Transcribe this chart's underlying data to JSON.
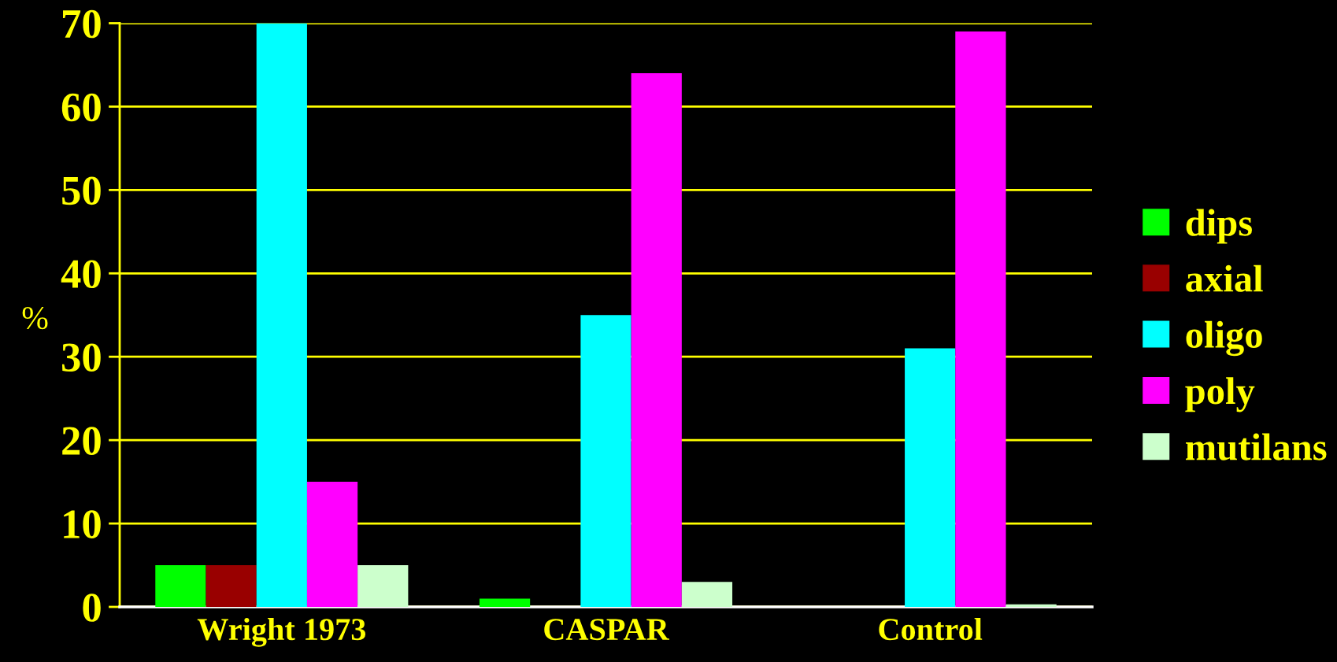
{
  "chart_data": {
    "type": "bar",
    "categories": [
      "Wright 1973",
      "CASPAR",
      "Control"
    ],
    "ylabel": "%",
    "ylim": [
      0,
      70
    ],
    "yticks": [
      0,
      10,
      20,
      30,
      40,
      50,
      60,
      70
    ],
    "grid": "y",
    "legend": "right",
    "series": [
      {
        "name": "dips",
        "color": "#00ff00",
        "values": [
          5,
          1,
          0
        ]
      },
      {
        "name": "axial",
        "color": "#990000",
        "values": [
          5,
          0,
          0
        ]
      },
      {
        "name": "oligo",
        "color": "#00ffff",
        "values": [
          70,
          35,
          31
        ]
      },
      {
        "name": "poly",
        "color": "#ff00ff",
        "values": [
          15,
          64,
          69
        ]
      },
      {
        "name": "mutilans",
        "color": "#ccffcc",
        "values": [
          5,
          3,
          0.3
        ]
      }
    ]
  }
}
